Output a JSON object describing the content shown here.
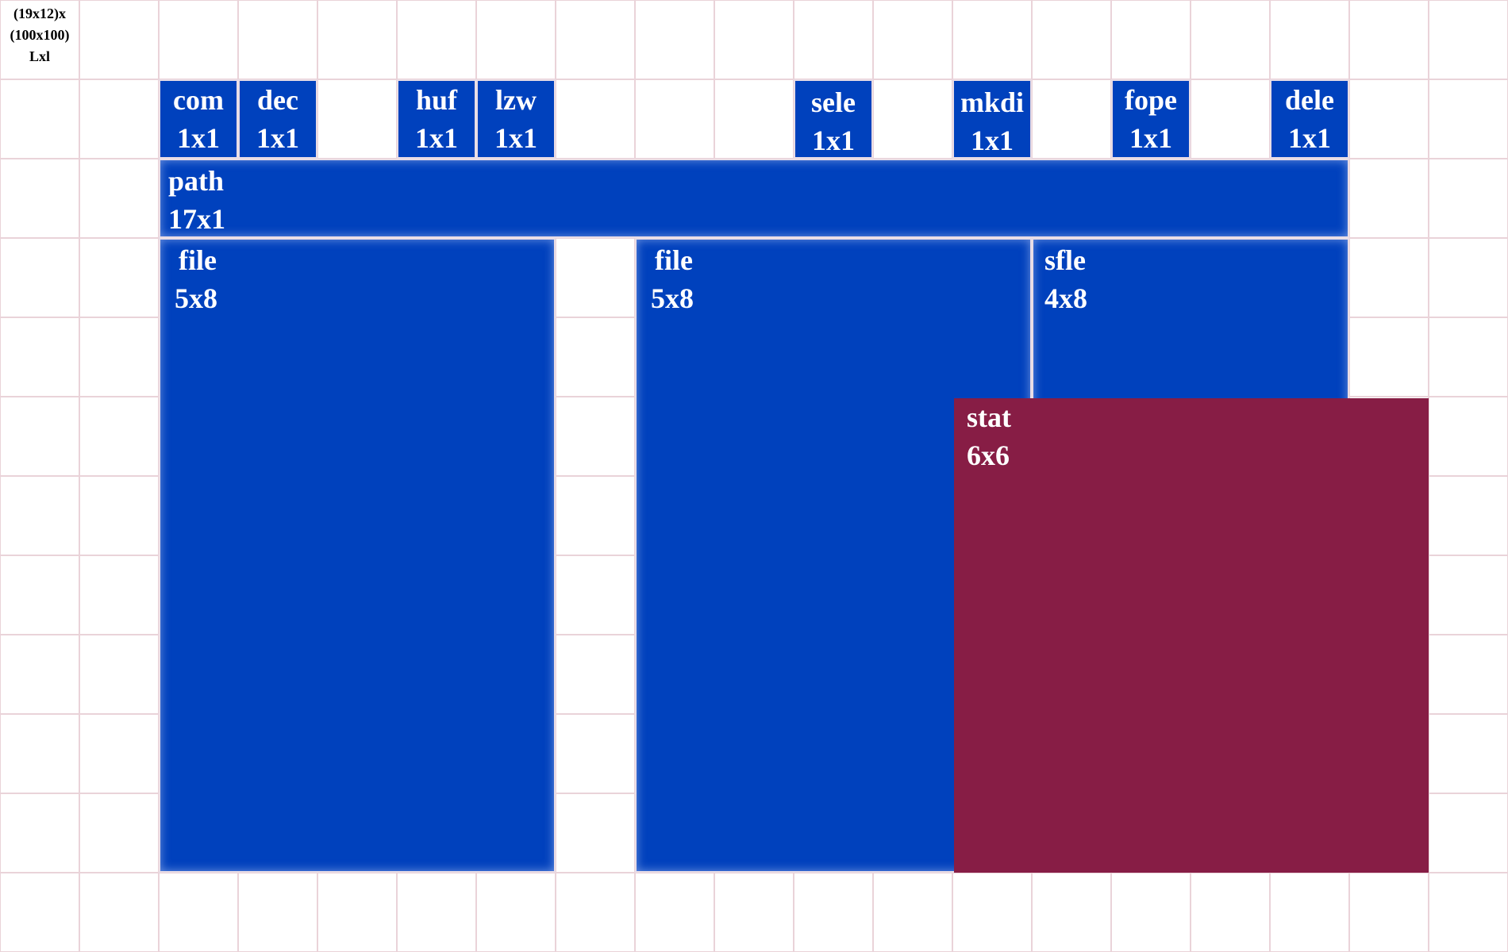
{
  "grid": {
    "columns": 19,
    "rows": 12,
    "info_lines": [
      "(19x12)x",
      "(100x100)",
      "Lxl"
    ]
  },
  "colors": {
    "grid_line": "#ead3d9",
    "panel_blue": "#0041bd",
    "panel_maroon": "#871d45",
    "text": "#ffffff"
  },
  "toolbar": {
    "compress_button": {
      "label": "com",
      "size": "1x1"
    },
    "decompress_button": {
      "label": "dec",
      "size": "1x1"
    },
    "huffman_button": {
      "label": "huf",
      "size": "1x1"
    },
    "lzw_button": {
      "label": "lzw",
      "size": "1x1"
    },
    "select_button": {
      "label": "sele",
      "size": "1x1"
    },
    "mkdir_button": {
      "label": "mkdi",
      "size": "1x1"
    },
    "fopen_button": {
      "label": "fope",
      "size": "1x1"
    },
    "delete_button": {
      "label": "dele",
      "size": "1x1"
    }
  },
  "path_bar": {
    "label": "path",
    "size": "17x1"
  },
  "panels": {
    "file_left": {
      "label": "file",
      "size": "5x8"
    },
    "file_right": {
      "label": "file",
      "size": "5x8"
    },
    "selected_files": {
      "label": "sfle",
      "size": "4x8"
    },
    "status": {
      "label": "stat",
      "size": "6x6"
    }
  }
}
